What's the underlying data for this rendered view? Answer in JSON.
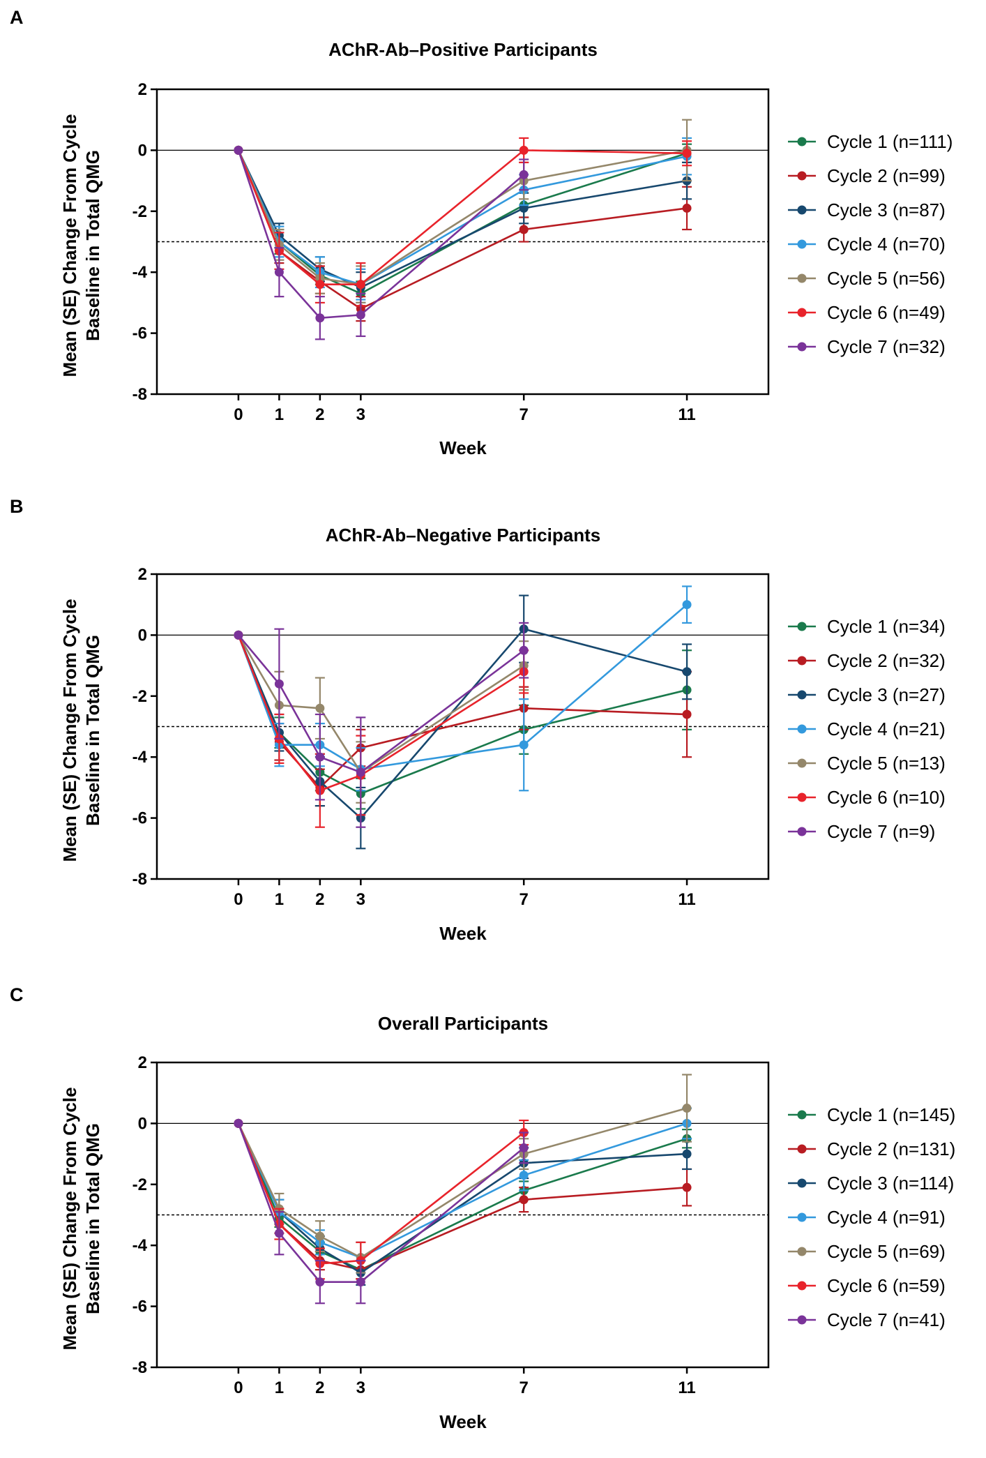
{
  "chart_data": [
    {
      "panel_label": "A",
      "type": "line",
      "title": "AChR-Ab–Positive Participants",
      "xlabel": "Week",
      "ylabel_line1": "Mean (SE) Change From Cycle",
      "ylabel_line2": "Baseline in Total QMG",
      "x": [
        0,
        1,
        2,
        3,
        7,
        11
      ],
      "x_tick_labels": [
        "0",
        "1",
        "2",
        "3",
        "7",
        "11"
      ],
      "y_ticks": [
        "2",
        "0",
        "-2",
        "-4",
        "-6",
        "-8"
      ],
      "xlim": [
        -2,
        13
      ],
      "ylim": [
        -8,
        2
      ],
      "reference_lines": [
        0,
        -3
      ],
      "series": [
        {
          "name": "Cycle 1 (n=111)",
          "color": "#1a7a4c",
          "values": [
            0,
            -3.0,
            -4.1,
            -4.7,
            -1.8,
            -0.1
          ],
          "se": [
            0,
            0.4,
            0.3,
            0.4,
            0.4,
            0.3
          ]
        },
        {
          "name": "Cycle 2 (n=99)",
          "color": "#b81c22",
          "values": [
            0,
            -3.3,
            -4.3,
            -5.2,
            -2.6,
            -1.9
          ],
          "se": [
            0,
            0.4,
            0.4,
            0.4,
            0.4,
            0.7
          ]
        },
        {
          "name": "Cycle 3 (n=87)",
          "color": "#17486e",
          "values": [
            0,
            -2.8,
            -3.9,
            -4.5,
            -1.9,
            -1.0
          ],
          "se": [
            0,
            0.4,
            0.4,
            0.5,
            0.5,
            0.6
          ]
        },
        {
          "name": "Cycle 4 (n=70)",
          "color": "#3399dd",
          "values": [
            0,
            -3.0,
            -4.0,
            -4.4,
            -1.3,
            -0.2
          ],
          "se": [
            0,
            0.5,
            0.5,
            0.5,
            0.5,
            0.6
          ]
        },
        {
          "name": "Cycle 5 (n=56)",
          "color": "#94876a",
          "values": [
            0,
            -3.1,
            -4.2,
            -4.4,
            -1.0,
            0.0
          ],
          "se": [
            0,
            0.5,
            0.5,
            0.6,
            0.6,
            1.0
          ]
        },
        {
          "name": "Cycle 6 (n=49)",
          "color": "#e8232b",
          "values": [
            0,
            -3.3,
            -4.4,
            -4.4,
            0.0,
            -0.1
          ],
          "se": [
            0,
            0.6,
            0.6,
            0.7,
            0.4,
            0.4
          ]
        },
        {
          "name": "Cycle 7 (n=32)",
          "color": "#7a3399",
          "values": [
            0,
            -4.0,
            -5.5,
            -5.4,
            -0.8,
            null
          ],
          "se": [
            0,
            0.8,
            0.7,
            0.7,
            0.5,
            0
          ]
        }
      ]
    },
    {
      "panel_label": "B",
      "type": "line",
      "title": "AChR-Ab–Negative Participants",
      "xlabel": "Week",
      "ylabel_line1": "Mean (SE) Change From Cycle",
      "ylabel_line2": "Baseline in Total QMG",
      "x": [
        0,
        1,
        2,
        3,
        7,
        11
      ],
      "x_tick_labels": [
        "0",
        "1",
        "2",
        "3",
        "7",
        "11"
      ],
      "y_ticks": [
        "2",
        "0",
        "-2",
        "-4",
        "-6",
        "-8"
      ],
      "xlim": [
        -2,
        13
      ],
      "ylim": [
        -8,
        2
      ],
      "reference_lines": [
        0,
        -3
      ],
      "series": [
        {
          "name": "Cycle 1 (n=34)",
          "color": "#1a7a4c",
          "values": [
            0,
            -3.2,
            -4.5,
            -5.2,
            -3.1,
            -1.8
          ],
          "se": [
            0,
            0.5,
            0.6,
            0.5,
            0.8,
            1.3
          ]
        },
        {
          "name": "Cycle 2 (n=32)",
          "color": "#b81c22",
          "values": [
            0,
            -3.5,
            -5.0,
            -3.7,
            -2.4,
            -2.6
          ],
          "se": [
            0,
            0.6,
            0.6,
            0.6,
            0.7,
            1.4
          ]
        },
        {
          "name": "Cycle 3 (n=27)",
          "color": "#17486e",
          "values": [
            0,
            -3.2,
            -4.8,
            -6.0,
            0.2,
            -1.2
          ],
          "se": [
            0,
            0.6,
            0.8,
            1.0,
            1.1,
            0.9
          ]
        },
        {
          "name": "Cycle 4 (n=21)",
          "color": "#3399dd",
          "values": [
            0,
            -3.6,
            -3.6,
            -4.4,
            -3.6,
            1.0
          ],
          "se": [
            0,
            0.7,
            0.7,
            0.7,
            1.5,
            0.6
          ]
        },
        {
          "name": "Cycle 5 (n=13)",
          "color": "#94876a",
          "values": [
            0,
            -2.3,
            -2.4,
            -4.5,
            -1.0,
            null
          ],
          "se": [
            0,
            1.1,
            1.0,
            1.0,
            0.8,
            0
          ]
        },
        {
          "name": "Cycle 6 (n=10)",
          "color": "#e8232b",
          "values": [
            0,
            -3.4,
            -5.1,
            -4.6,
            -1.2,
            null
          ],
          "se": [
            0,
            0.8,
            1.2,
            1.3,
            0.7,
            0
          ]
        },
        {
          "name": "Cycle 7 (n=9)",
          "color": "#7a3399",
          "values": [
            0,
            -1.6,
            -4.0,
            -4.5,
            -0.5,
            null
          ],
          "se": [
            0,
            1.8,
            1.4,
            1.8,
            0.9,
            0
          ]
        }
      ]
    },
    {
      "panel_label": "C",
      "type": "line",
      "title": "Overall Participants",
      "xlabel": "Week",
      "ylabel_line1": "Mean (SE) Change From Cycle",
      "ylabel_line2": "Baseline in Total QMG",
      "x": [
        0,
        1,
        2,
        3,
        7,
        11
      ],
      "x_tick_labels": [
        "0",
        "1",
        "2",
        "3",
        "7",
        "11"
      ],
      "y_ticks": [
        "2",
        "0",
        "-2",
        "-4",
        "-6",
        "-8"
      ],
      "xlim": [
        -2,
        13
      ],
      "ylim": [
        -8,
        2
      ],
      "reference_lines": [
        0,
        -3
      ],
      "series": [
        {
          "name": "Cycle 1 (n=145)",
          "color": "#1a7a4c",
          "values": [
            0,
            -3.1,
            -4.2,
            -4.8,
            -2.2,
            -0.5
          ],
          "se": [
            0,
            0.3,
            0.3,
            0.3,
            0.3,
            0.3
          ]
        },
        {
          "name": "Cycle 2 (n=131)",
          "color": "#b81c22",
          "values": [
            0,
            -3.3,
            -4.5,
            -4.8,
            -2.5,
            -2.1
          ],
          "se": [
            0,
            0.3,
            0.3,
            0.3,
            0.4,
            0.6
          ]
        },
        {
          "name": "Cycle 3 (n=114)",
          "color": "#17486e",
          "values": [
            0,
            -2.9,
            -4.1,
            -4.9,
            -1.3,
            -1.0
          ],
          "se": [
            0,
            0.4,
            0.4,
            0.4,
            0.5,
            0.5
          ]
        },
        {
          "name": "Cycle 4 (n=91)",
          "color": "#3399dd",
          "values": [
            0,
            -2.9,
            -3.9,
            -4.4,
            -1.7,
            0.0
          ],
          "se": [
            0,
            0.4,
            0.4,
            0.5,
            0.5,
            0.5
          ]
        },
        {
          "name": "Cycle 5 (n=69)",
          "color": "#94876a",
          "values": [
            0,
            -2.8,
            -3.7,
            -4.4,
            -1.0,
            0.5
          ],
          "se": [
            0,
            0.5,
            0.5,
            0.5,
            0.5,
            1.1
          ]
        },
        {
          "name": "Cycle 6 (n=59)",
          "color": "#e8232b",
          "values": [
            0,
            -3.3,
            -4.6,
            -4.5,
            -0.3,
            null
          ],
          "se": [
            0,
            0.5,
            0.5,
            0.6,
            0.4,
            0
          ]
        },
        {
          "name": "Cycle 7 (n=41)",
          "color": "#7a3399",
          "values": [
            0,
            -3.6,
            -5.2,
            -5.2,
            -0.8,
            null
          ],
          "se": [
            0,
            0.7,
            0.7,
            0.7,
            0.5,
            0
          ]
        }
      ]
    }
  ]
}
